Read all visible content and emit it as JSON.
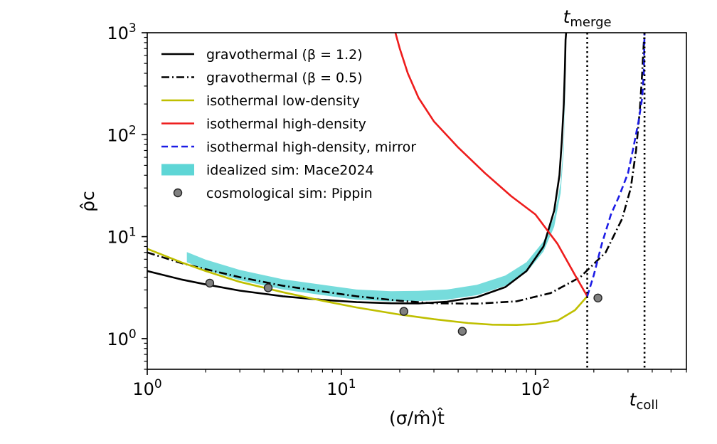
{
  "chart_data": {
    "type": "line",
    "title": "",
    "xlabel": "(σ/m̂)t̂",
    "ylabel": "ρ̂c",
    "xscale": "log",
    "yscale": "log",
    "xlim": [
      1,
      600
    ],
    "ylim": [
      0.5,
      1000
    ],
    "x_ticks": [
      {
        "value": 1,
        "base": "10",
        "exp": "0"
      },
      {
        "value": 10,
        "base": "10",
        "exp": "1"
      },
      {
        "value": 100,
        "base": "10",
        "exp": "2"
      }
    ],
    "y_ticks": [
      {
        "value": 1,
        "base": "10",
        "exp": "0"
      },
      {
        "value": 10,
        "base": "10",
        "exp": "1"
      },
      {
        "value": 100,
        "base": "10",
        "exp": "2"
      },
      {
        "value": 1000,
        "base": "10",
        "exp": "3"
      }
    ],
    "legend_position": "top-left",
    "series": [
      {
        "name": "gravothermal (β = 1.2)",
        "style": "solid",
        "color": "#000000",
        "x": [
          1,
          1.5,
          2,
          3,
          5,
          8,
          12,
          18,
          25,
          35,
          50,
          70,
          90,
          110,
          125,
          133,
          137,
          140,
          142,
          143,
          144
        ],
        "y": [
          4.6,
          3.8,
          3.4,
          2.95,
          2.6,
          2.4,
          2.28,
          2.22,
          2.21,
          2.3,
          2.55,
          3.2,
          4.6,
          8.0,
          18,
          40,
          90,
          200,
          450,
          850,
          1000
        ]
      },
      {
        "name": "gravothermal (β = 0.5)",
        "style": "dashdot",
        "color": "#000000",
        "x": [
          1,
          1.5,
          2,
          3,
          5,
          8,
          12,
          20,
          30,
          50,
          80,
          120,
          170,
          230,
          280,
          310,
          330,
          345,
          355,
          362,
          365
        ],
        "y": [
          7,
          5.5,
          4.8,
          4.0,
          3.3,
          2.9,
          2.6,
          2.35,
          2.22,
          2.2,
          2.32,
          2.8,
          4.0,
          7.0,
          15,
          30,
          70,
          170,
          400,
          800,
          1000
        ]
      },
      {
        "name": "isothermal low-density",
        "style": "solid",
        "color": "#bfbf00",
        "x": [
          1,
          1.5,
          2,
          3,
          5,
          8,
          12,
          20,
          30,
          45,
          60,
          80,
          100,
          130,
          160,
          185
        ],
        "y": [
          7.6,
          5.6,
          4.6,
          3.6,
          2.85,
          2.35,
          2.02,
          1.72,
          1.55,
          1.42,
          1.37,
          1.36,
          1.39,
          1.5,
          1.9,
          2.6
        ]
      },
      {
        "name": "isothermal high-density",
        "style": "solid",
        "color": "#ee1c1c",
        "x": [
          19,
          20,
          22,
          25,
          30,
          40,
          55,
          75,
          100,
          130,
          160,
          185
        ],
        "y": [
          1000,
          700,
          400,
          230,
          135,
          75,
          42,
          25,
          16.5,
          8.5,
          4.2,
          2.6
        ]
      },
      {
        "name": "isothermal high-density, mirror",
        "style": "dashed",
        "color": "#1c1ce6",
        "x": [
          185,
          200,
          220,
          245,
          270,
          300,
          320,
          340,
          355,
          362,
          365
        ],
        "y": [
          2.6,
          4.2,
          8.5,
          16.5,
          25,
          42,
          75,
          135,
          230,
          400,
          1000
        ]
      },
      {
        "name": "idealized sim: Mace2024",
        "style": "band",
        "color": "#5ed6d6",
        "x": [
          1.6,
          2,
          3,
          5,
          8,
          12,
          18,
          25,
          35,
          50,
          70,
          90,
          110,
          125,
          135,
          140,
          142,
          144
        ],
        "y": [
          6.3,
          5.3,
          4.2,
          3.4,
          3.0,
          2.7,
          2.6,
          2.62,
          2.7,
          3.0,
          3.7,
          5.0,
          8.0,
          14,
          30,
          80,
          200,
          800
        ],
        "band_width_dex": 0.05
      },
      {
        "name": "cosmological sim: Pippin",
        "style": "markers",
        "color": "#808080",
        "x": [
          2.1,
          4.2,
          21,
          42,
          210
        ],
        "y": [
          3.5,
          3.15,
          1.85,
          1.18,
          2.5
        ]
      }
    ],
    "vlines": [
      {
        "x": 185,
        "label_base": "t",
        "label_sub": "merge",
        "position": "top"
      },
      {
        "x": 365,
        "label_base": "t",
        "label_sub": "coll",
        "position": "bottom-right"
      }
    ]
  }
}
